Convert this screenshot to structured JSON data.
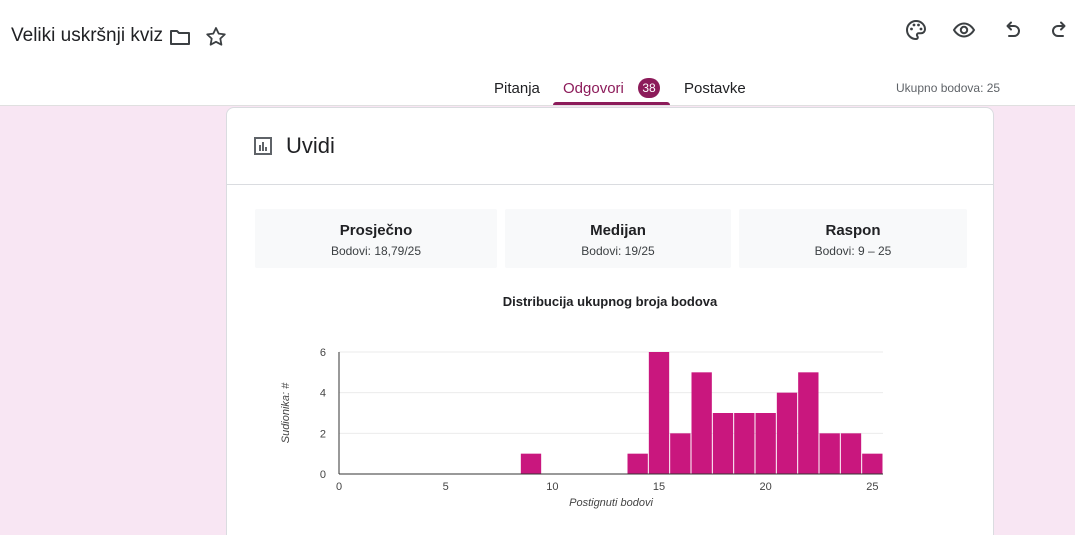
{
  "header": {
    "doc_title": "Veliki uskršnji kviz",
    "icons": [
      "folder-icon",
      "star-icon",
      "palette-icon",
      "eye-icon",
      "undo-icon",
      "redo-icon"
    ],
    "tabs": [
      {
        "label": "Pitanja"
      },
      {
        "label": "Odgovori",
        "badge": "38",
        "active": true
      },
      {
        "label": "Postavke"
      }
    ],
    "total_points": "Ukupno bodova: 25"
  },
  "colors": {
    "accent": "#8c1b5a",
    "bar": "#c9177e",
    "background": "#f8e6f3"
  },
  "insights": {
    "title": "Uvidi",
    "icon": "chart-icon",
    "stats": [
      {
        "label": "Prosječno",
        "value": "Bodovi: 18,79/25"
      },
      {
        "label": "Medijan",
        "value": "Bodovi: 19/25"
      },
      {
        "label": "Raspon",
        "value": "Bodovi: 9 – 25"
      }
    ]
  },
  "chart_data": {
    "type": "bar",
    "title": "Distribucija ukupnog broja bodova",
    "xlabel": "Postignuti bodovi",
    "ylabel": "Sudionika: #",
    "x_ticks": [
      0,
      5,
      10,
      15,
      20,
      25
    ],
    "y_ticks": [
      0,
      2,
      4,
      6
    ],
    "xlim": [
      0,
      25.5
    ],
    "ylim": [
      0,
      6
    ],
    "grid": true,
    "categories": [
      9,
      14,
      15,
      16,
      17,
      18,
      19,
      20,
      21,
      22,
      23,
      24,
      25
    ],
    "values": [
      1,
      1,
      6,
      2,
      5,
      3,
      3,
      3,
      4,
      5,
      2,
      2,
      1
    ]
  }
}
